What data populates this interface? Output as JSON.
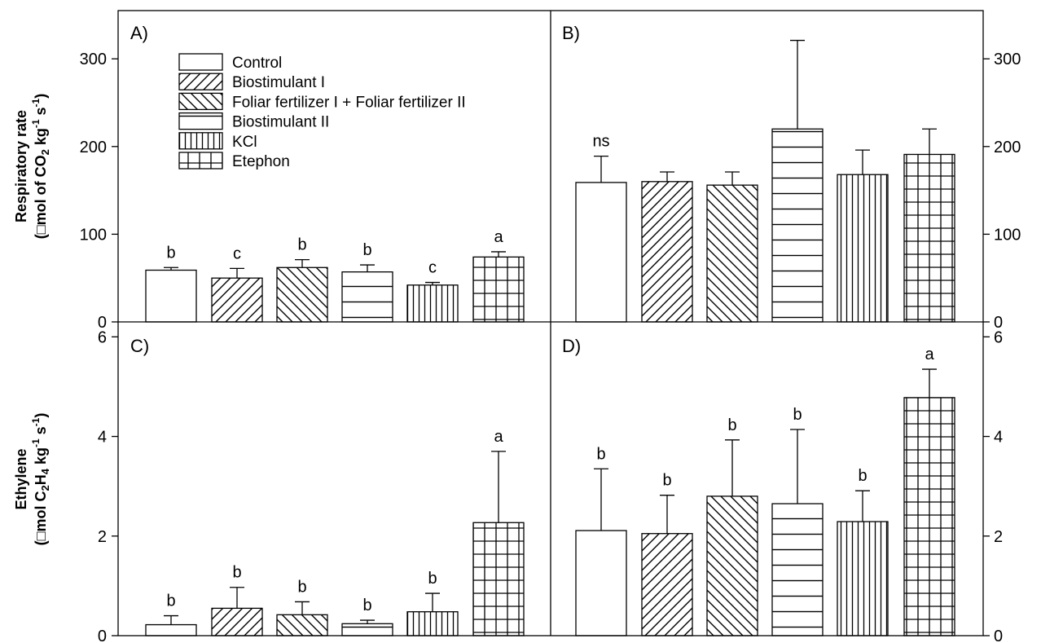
{
  "figure": {
    "ylabels": {
      "top": {
        "line1": "Respiratory rate",
        "line2_prefix": "(□mol of CO",
        "line2_sub": "2",
        "line2_mid": " kg",
        "line2_sup": "-1",
        "line2_mid2": " s",
        "line2_sup2": "-1",
        "line2_end": ")"
      },
      "bottom": {
        "line1": "Ethylene",
        "line2_prefix": "(□mol C",
        "line2_sub": "2",
        "line2_mid": "H",
        "line2_sub2": "4",
        "line2_mid2": " kg",
        "line2_sup": "-1",
        "line2_mid3": " s",
        "line2_sup2": "-1",
        "line2_end": ")"
      }
    },
    "legend": [
      {
        "label": "Control",
        "pattern": "none"
      },
      {
        "label": "Biostimulant I",
        "pattern": "diag-up"
      },
      {
        "label": "Foliar fertilizer I + Foliar fertilizer II",
        "pattern": "diag-down"
      },
      {
        "label": "Biostimulant II",
        "pattern": "horizontal"
      },
      {
        "label": "KCl",
        "pattern": "vertical"
      },
      {
        "label": "Etephon",
        "pattern": "grid"
      }
    ]
  },
  "chart_data": [
    {
      "panel": "A)",
      "type": "bar",
      "categories": [
        "Control",
        "Biostimulant I",
        "Foliar fertilizer I + Foliar fertilizer II",
        "Biostimulant II",
        "KCl",
        "Etephon"
      ],
      "values": [
        59,
        50,
        62,
        57,
        42,
        74
      ],
      "errors": [
        3,
        11,
        9,
        8,
        3,
        6
      ],
      "letters": [
        "b",
        "c",
        "b",
        "b",
        "c",
        "a"
      ],
      "ylim": [
        0,
        355
      ],
      "yticks": [
        0,
        100,
        200,
        300
      ],
      "ylabel": "Respiratory rate (□mol of CO2 kg-1 s-1)"
    },
    {
      "panel": "B)",
      "type": "bar",
      "categories": [
        "Control",
        "Biostimulant I",
        "Foliar fertilizer I + Foliar fertilizer II",
        "Biostimulant II",
        "KCl",
        "Etephon"
      ],
      "values": [
        159,
        160,
        156,
        220,
        168,
        191
      ],
      "errors": [
        30,
        11,
        15,
        101,
        28,
        29
      ],
      "letters": [
        "ns",
        "",
        "",
        "",
        "",
        ""
      ],
      "ylim": [
        0,
        355
      ],
      "yticks": [
        0,
        100,
        200,
        300
      ]
    },
    {
      "panel": "C)",
      "type": "bar",
      "categories": [
        "Control",
        "Biostimulant I",
        "Foliar fertilizer I + Foliar fertilizer II",
        "Biostimulant II",
        "KCl",
        "Etephon"
      ],
      "values": [
        0.22,
        0.55,
        0.42,
        0.24,
        0.48,
        2.27
      ],
      "errors": [
        0.18,
        0.42,
        0.26,
        0.07,
        0.37,
        1.43
      ],
      "letters": [
        "b",
        "b",
        "b",
        "b",
        "b",
        "a"
      ],
      "ylim": [
        0,
        6.3
      ],
      "yticks": [
        0,
        2,
        4,
        6
      ],
      "ylabel": "Ethylene (□mol C2H4 kg-1 s-1)"
    },
    {
      "panel": "D)",
      "type": "bar",
      "categories": [
        "Control",
        "Biostimulant I",
        "Foliar fertilizer I + Foliar fertilizer II",
        "Biostimulant II",
        "KCl",
        "Etephon"
      ],
      "values": [
        2.11,
        2.05,
        2.8,
        2.65,
        2.29,
        4.78
      ],
      "errors": [
        1.24,
        0.77,
        1.13,
        1.49,
        0.62,
        0.57
      ],
      "letters": [
        "b",
        "b",
        "b",
        "b",
        "b",
        "a"
      ],
      "ylim": [
        0,
        6.3
      ],
      "yticks": [
        0,
        2,
        4,
        6
      ]
    }
  ]
}
